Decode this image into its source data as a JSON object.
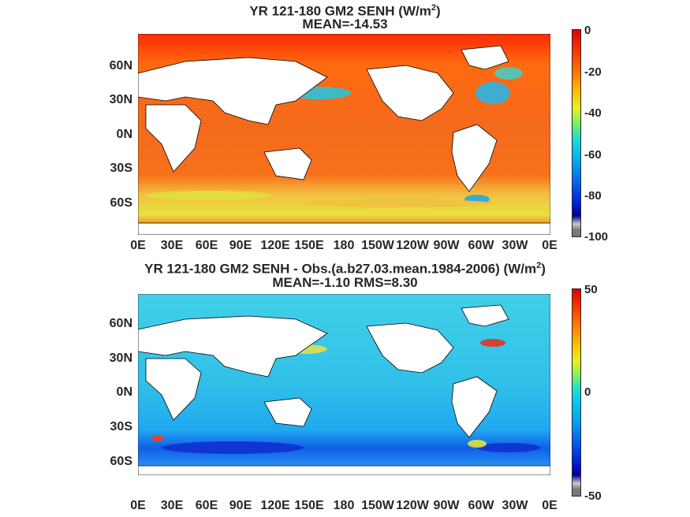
{
  "panels": [
    {
      "id": "top",
      "title_main": "YR 121-180 GM2  SENH (W/m",
      "title_sup": "2",
      "title_close": ")",
      "subtitle": "MEAN=-14.53",
      "y_ticks": [
        "60N",
        "30N",
        "0N",
        "30S",
        "60S"
      ],
      "x_ticks": [
        "0E",
        "30E",
        "60E",
        "90E",
        "120E",
        "150E",
        "180",
        "150W",
        "120W",
        "90W",
        "60W",
        "30W",
        "0E"
      ],
      "colorbar_ticks": [
        "0",
        "-20",
        "-40",
        "-60",
        "-80",
        "-100"
      ]
    },
    {
      "id": "bottom",
      "title_main": "YR 121-180 GM2 SENH - Obs.(a.b27.03.mean.1984-2006) (W/m",
      "title_sup": "2",
      "title_close": ")",
      "subtitle": "MEAN=-1.10 RMS=8.30",
      "y_ticks": [
        "60N",
        "30N",
        "0N",
        "30S",
        "60S"
      ],
      "x_ticks": [
        "0E",
        "30E",
        "60E",
        "90E",
        "120E",
        "150E",
        "180",
        "150W",
        "120W",
        "90W",
        "60W",
        "30W",
        "0E"
      ],
      "colorbar_ticks": [
        "50",
        "0",
        "-50"
      ]
    }
  ],
  "colors": {
    "top_ocean": "#f05a1e",
    "bottom_ocean": "#2bbfe0",
    "land": "#ffffff",
    "coast": "#000000"
  }
}
